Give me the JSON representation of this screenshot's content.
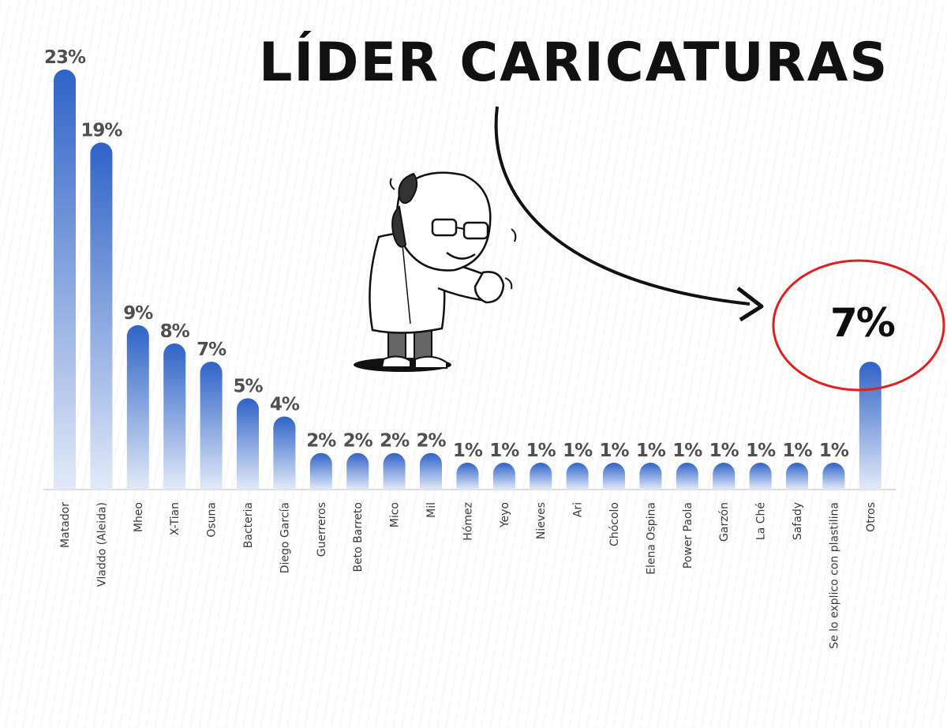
{
  "headline": "LÍDER CARICATURAS",
  "highlight": {
    "label": "7%",
    "color": "#e02020"
  },
  "colors": {
    "bar_top": "#2f63c7",
    "bar_bottom": "#e2eaf8",
    "axis": "#dcdcdc",
    "text": "#4f4f4f"
  },
  "chart_data": {
    "type": "bar",
    "categories": [
      "Matador",
      "Vladdo (Aleida)",
      "Mheo",
      "X-Tian",
      "Osuna",
      "Bacteria",
      "Diego García",
      "Guerreros",
      "Beto Barreto",
      "Mico",
      "Mil",
      "Hómez",
      "Yeyo",
      "Nieves",
      "Ari",
      "Chócolo",
      "Elena Ospina",
      "Power Paola",
      "Garzón",
      "La Ché",
      "Safady",
      "Se lo explico con plastilina",
      "Otros"
    ],
    "values": [
      23,
      19,
      9,
      8,
      7,
      5,
      4,
      2,
      2,
      2,
      2,
      1,
      1,
      1,
      1,
      1,
      1,
      1,
      1,
      1,
      1,
      1,
      7
    ],
    "value_labels": [
      "23%",
      "19%",
      "9%",
      "8%",
      "7%",
      "5%",
      "4%",
      "2%",
      "2%",
      "2%",
      "2%",
      "1%",
      "1%",
      "1%",
      "1%",
      "1%",
      "1%",
      "1%",
      "1%",
      "1%",
      "1%",
      "1%",
      ""
    ],
    "unit": "%",
    "ylim": [
      0,
      23
    ],
    "grid": false,
    "legend": "none"
  }
}
